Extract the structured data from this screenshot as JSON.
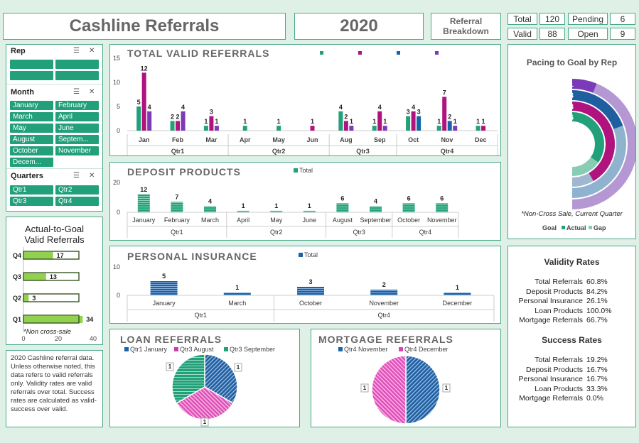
{
  "header": {
    "title": "Cashline Referrals",
    "year": "2020",
    "breakdown_line1": "Referral",
    "breakdown_line2": "Breakdown"
  },
  "stats": {
    "total_label": "Total",
    "total_value": "120",
    "pending_label": "Pending",
    "pending_value": "6",
    "valid_label": "Valid",
    "valid_value": "88",
    "open_label": "Open",
    "open_value": "9"
  },
  "slicers": {
    "rep": {
      "title": "Rep"
    },
    "month": {
      "title": "Month",
      "items": [
        "January",
        "February",
        "March",
        "April",
        "May",
        "June",
        "August",
        "Septem...",
        "October",
        "November",
        "Decem..."
      ]
    },
    "quarters": {
      "title": "Quarters",
      "items": [
        "Qtr1",
        "Qtr2",
        "Qtr3",
        "Qtr4"
      ]
    }
  },
  "goal": {
    "title_line1": "Actual-to-Goal",
    "title_line2": "Valid Referrals",
    "footnote": "*Non cross-sale"
  },
  "note": {
    "text": "2020 Cashline referral data. Unless otherwise noted, this data refers to valid referrals only. Validity rates are valid referrals over total. Success rates are calculated as valid-success over valid."
  },
  "pacing": {
    "title": "Pacing to Goal by Rep",
    "footnote": "*Non-Cross Sale, Current Quarter",
    "labels": [
      "1",
      "3",
      "8",
      "6"
    ],
    "legend": [
      "Goal",
      "Actual",
      "Gap"
    ]
  },
  "validity": {
    "title": "Validity Rates",
    "rows": [
      {
        "label": "Total Referrals",
        "value": "60.8%"
      },
      {
        "label": "Deposit Products",
        "value": "84.2%"
      },
      {
        "label": "Personal Insurance",
        "value": "26.1%"
      },
      {
        "label": "Loan Products",
        "value": "100.0%"
      },
      {
        "label": "Mortgage Referrals",
        "value": "66.7%"
      }
    ]
  },
  "success": {
    "title": "Success Rates",
    "rows": [
      {
        "label": "Total Referrals",
        "value": "19.2%"
      },
      {
        "label": "Deposit Products",
        "value": "16.7%"
      },
      {
        "label": "Personal Insurance",
        "value": "16.7%"
      },
      {
        "label": "Loan Products",
        "value": "33.3%"
      },
      {
        "label": "Mortgage Referrals",
        "value": "0.0%"
      }
    ]
  },
  "colors": {
    "teal": "#21a07a",
    "magenta": "#b0137e",
    "blue": "#1565a8",
    "purple": "#7b3ab8",
    "green_light": "#92d050"
  },
  "chart_data": [
    {
      "id": "total_valid",
      "type": "bar",
      "title": "TOTAL VALID REFERRALS",
      "ylim": [
        0,
        15
      ],
      "yticks": [
        "0",
        "5",
        "10",
        "15"
      ],
      "months": [
        "Jan",
        "Feb",
        "Mar",
        "Apr",
        "May",
        "Jun",
        "Aug",
        "Sep",
        "Oct",
        "Nov",
        "Dec"
      ],
      "quarters": [
        "Qtr1",
        "Qtr2",
        "Qtr3",
        "Qtr4"
      ],
      "quarter_spans": [
        3,
        3,
        2,
        3
      ],
      "series": [
        {
          "color": "#21a07a",
          "values": [
            5,
            2,
            1,
            1,
            1,
            0,
            4,
            1,
            3,
            1,
            1
          ]
        },
        {
          "color": "#b0137e",
          "values": [
            12,
            2,
            3,
            0,
            0,
            1,
            2,
            4,
            4,
            7,
            1
          ]
        },
        {
          "color": "#1565a8",
          "values": [
            0,
            0,
            0,
            0,
            0,
            0,
            0,
            0,
            3,
            2,
            0
          ]
        },
        {
          "color": "#7b3ab8",
          "values": [
            4,
            4,
            1,
            0,
            0,
            0,
            1,
            1,
            0,
            1,
            0
          ]
        }
      ]
    },
    {
      "id": "deposit",
      "type": "bar",
      "title": "DEPOSIT PRODUCTS",
      "legend": "Total",
      "ylim": [
        0,
        20
      ],
      "yticks": [
        "0",
        "20"
      ],
      "categories": [
        "January",
        "February",
        "March",
        "April",
        "May",
        "June",
        "August",
        "September",
        "October",
        "November"
      ],
      "values": [
        12,
        7,
        4,
        1,
        1,
        1,
        6,
        4,
        6,
        6
      ],
      "quarters": [
        "Qtr1",
        "Qtr2",
        "Qtr3",
        "Qtr4"
      ],
      "quarter_spans": [
        3,
        3,
        2,
        2
      ]
    },
    {
      "id": "insurance",
      "type": "bar",
      "title": "PERSONAL INSURANCE",
      "legend": "Total",
      "ylim": [
        0,
        10
      ],
      "yticks": [
        "0",
        "10"
      ],
      "categories": [
        "January",
        "March",
        "October",
        "November",
        "December"
      ],
      "values": [
        5,
        1,
        3,
        2,
        1
      ],
      "quarters": [
        "Qtr1",
        "Qtr4"
      ],
      "quarter_spans": [
        2,
        3
      ]
    },
    {
      "id": "goal",
      "type": "bar",
      "categories": [
        "Q4",
        "Q3",
        "Q2",
        "Q1"
      ],
      "values": [
        17,
        13,
        3,
        34
      ],
      "xticks": [
        "0",
        "20",
        "40"
      ],
      "xlim": [
        0,
        40
      ]
    },
    {
      "id": "loan",
      "type": "pie",
      "title": "LOAN REFERRALS",
      "labels": [
        "Qtr1 January",
        "Qtr3 August",
        "Qtr3 September"
      ],
      "values": [
        1,
        1,
        1
      ],
      "colors": [
        "#1565a8",
        "#c93fb0",
        "#21a07a"
      ]
    },
    {
      "id": "mortgage",
      "type": "pie",
      "title": "MORTGAGE REFERRALS",
      "labels": [
        "Qtr4 November",
        "Qtr4 December"
      ],
      "values": [
        1,
        1
      ],
      "colors": [
        "#1565a8",
        "#d846b0"
      ]
    }
  ]
}
